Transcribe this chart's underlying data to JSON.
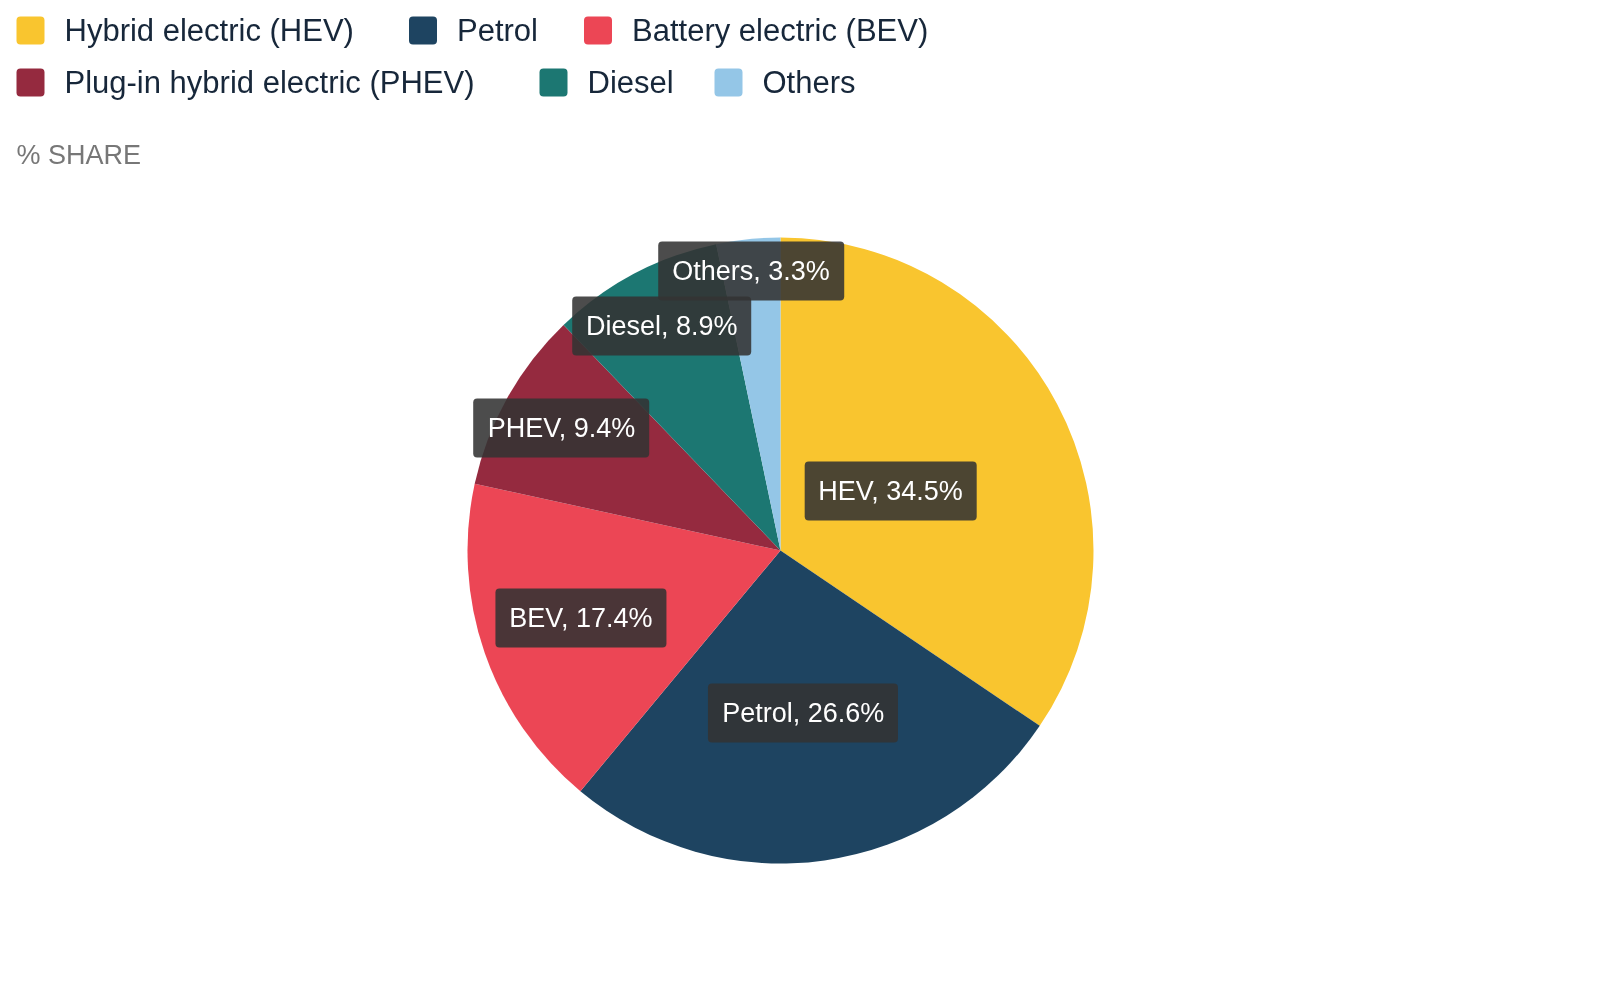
{
  "chart_data": {
    "type": "pie",
    "subtitle": "% SHARE",
    "categories": [
      "Hybrid electric (HEV)",
      "Petrol",
      "Battery electric (BEV)",
      "Plug-in hybrid electric (PHEV)",
      "Diesel",
      "Others"
    ],
    "values": [
      34.5,
      26.6,
      17.4,
      9.4,
      8.9,
      3.3
    ],
    "colors": [
      "#f9c52f",
      "#1e4461",
      "#ec4655",
      "#952a3f",
      "#1c7772",
      "#94c6e7"
    ],
    "value_labels": [
      "HEV, 34.5%",
      "Petrol, 26.6%",
      "BEV, 17.4%",
      "PHEV, 9.4%",
      "Diesel, 8.9%",
      "Others, 3.3%"
    ],
    "legend": "top"
  }
}
